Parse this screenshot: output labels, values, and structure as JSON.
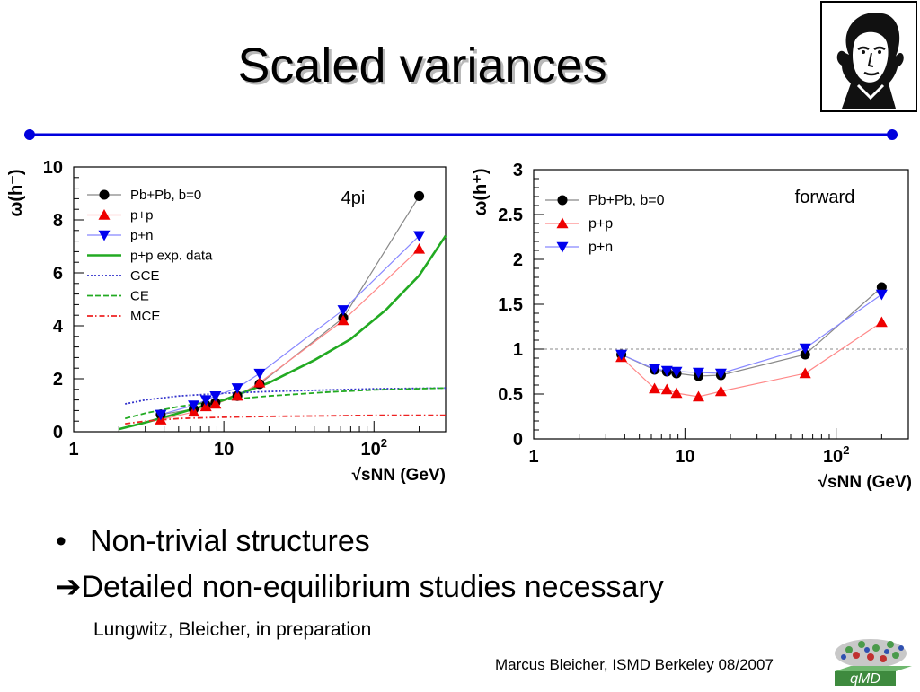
{
  "slide": {
    "title": "Scaled variances",
    "bullet": "Non-trivial structures",
    "arrow_text": "Detailed non-equilibrium studies necessary",
    "citation": "Lungwitz, Bleicher, in preparation",
    "footer": "Marcus Bleicher, ISMD Berkeley 08/2007",
    "logo_text": "qMD",
    "accent_color": "#0000dd"
  },
  "chart_data": [
    {
      "type": "line",
      "panel_label": "4pi",
      "ylabel": "ω(h⁻)",
      "xlabel": "√sNN (GeV)",
      "xscale": "log",
      "xlim": [
        1,
        300
      ],
      "ylim": [
        0,
        10
      ],
      "x_ticks": [
        {
          "v": 1,
          "t": "1"
        },
        {
          "v": 10,
          "t": "10"
        },
        {
          "v": 100,
          "t": "10²"
        }
      ],
      "y_ticks": [
        {
          "v": 0,
          "t": "0"
        },
        {
          "v": 2,
          "t": "2"
        },
        {
          "v": 4,
          "t": "4"
        },
        {
          "v": 6,
          "t": "6"
        },
        {
          "v": 8,
          "t": "8"
        },
        {
          "v": 10,
          "t": "10"
        }
      ],
      "legend_position": "top-left",
      "series": [
        {
          "name": "Pb+Pb, b=0",
          "marker": "circle",
          "color": "#000000",
          "line_color": "#888888",
          "x": [
            3.8,
            6.3,
            7.6,
            8.8,
            12.3,
            17.3,
            62.4,
            200
          ],
          "y": [
            0.65,
            0.85,
            1.0,
            1.1,
            1.35,
            1.8,
            4.3,
            8.9
          ]
        },
        {
          "name": "p+p",
          "marker": "triangle-up",
          "color": "#ee0000",
          "line_color": "#ff8888",
          "x": [
            3.8,
            6.3,
            7.6,
            8.8,
            12.3,
            17.3,
            62.4,
            200
          ],
          "y": [
            0.45,
            0.75,
            0.95,
            1.05,
            1.35,
            1.85,
            4.2,
            6.9
          ]
        },
        {
          "name": "p+n",
          "marker": "triangle-down",
          "color": "#0000ee",
          "line_color": "#8888ff",
          "x": [
            3.8,
            6.3,
            7.6,
            8.8,
            12.3,
            17.3,
            62.4,
            200
          ],
          "y": [
            0.65,
            1.0,
            1.2,
            1.35,
            1.65,
            2.2,
            4.6,
            7.4
          ]
        },
        {
          "name": "p+p exp. data",
          "style": "solid",
          "color": "#22aa22",
          "x": [
            2,
            3,
            5,
            10,
            20,
            40,
            70,
            120,
            200,
            300
          ],
          "y": [
            0.1,
            0.35,
            0.7,
            1.2,
            1.85,
            2.7,
            3.5,
            4.6,
            5.9,
            7.4
          ]
        },
        {
          "name": "GCE",
          "style": "dotted",
          "color": "#3333cc",
          "x": [
            2.2,
            3,
            5,
            10,
            20,
            50,
            100,
            300
          ],
          "y": [
            1.05,
            1.2,
            1.35,
            1.45,
            1.52,
            1.58,
            1.62,
            1.65
          ]
        },
        {
          "name": "CE",
          "style": "dashed",
          "color": "#22aa22",
          "x": [
            2.2,
            3,
            5,
            10,
            20,
            50,
            100,
            300
          ],
          "y": [
            0.5,
            0.7,
            0.95,
            1.2,
            1.35,
            1.5,
            1.58,
            1.65
          ]
        },
        {
          "name": "MCE",
          "style": "dashdot",
          "color": "#ee2222",
          "x": [
            2.2,
            3,
            5,
            10,
            20,
            50,
            100,
            300
          ],
          "y": [
            0.3,
            0.4,
            0.5,
            0.55,
            0.58,
            0.6,
            0.62,
            0.62
          ]
        }
      ]
    },
    {
      "type": "line",
      "panel_label": "forward",
      "ylabel": "ω(h⁺)",
      "xlabel": "√sNN (GeV)",
      "xscale": "log",
      "xlim": [
        1,
        300
      ],
      "ylim": [
        0,
        3
      ],
      "x_ticks": [
        {
          "v": 1,
          "t": "1"
        },
        {
          "v": 10,
          "t": "10"
        },
        {
          "v": 100,
          "t": "10²"
        }
      ],
      "y_ticks": [
        {
          "v": 0,
          "t": "0"
        },
        {
          "v": 0.5,
          "t": "0.5"
        },
        {
          "v": 1,
          "t": "1"
        },
        {
          "v": 1.5,
          "t": "1.5"
        },
        {
          "v": 2,
          "t": "2"
        },
        {
          "v": 2.5,
          "t": "2.5"
        },
        {
          "v": 3,
          "t": "3"
        }
      ],
      "reference_line": 1,
      "legend_position": "top-left",
      "series": [
        {
          "name": "Pb+Pb, b=0",
          "marker": "circle",
          "color": "#000000",
          "line_color": "#888888",
          "x": [
            3.8,
            6.3,
            7.6,
            8.8,
            12.3,
            17.3,
            62.4,
            200
          ],
          "y": [
            0.94,
            0.77,
            0.75,
            0.73,
            0.7,
            0.71,
            0.94,
            1.69
          ]
        },
        {
          "name": "p+p",
          "marker": "triangle-up",
          "color": "#ee0000",
          "line_color": "#ff8888",
          "x": [
            3.8,
            6.3,
            7.6,
            8.8,
            12.3,
            17.3,
            62.4,
            200
          ],
          "y": [
            0.91,
            0.56,
            0.55,
            0.51,
            0.47,
            0.53,
            0.73,
            1.3
          ]
        },
        {
          "name": "p+n",
          "marker": "triangle-down",
          "color": "#0000ee",
          "line_color": "#8888ff",
          "x": [
            3.8,
            6.3,
            7.6,
            8.8,
            12.3,
            17.3,
            62.4,
            200
          ],
          "y": [
            0.94,
            0.78,
            0.76,
            0.75,
            0.74,
            0.73,
            1.01,
            1.61
          ]
        }
      ]
    }
  ]
}
